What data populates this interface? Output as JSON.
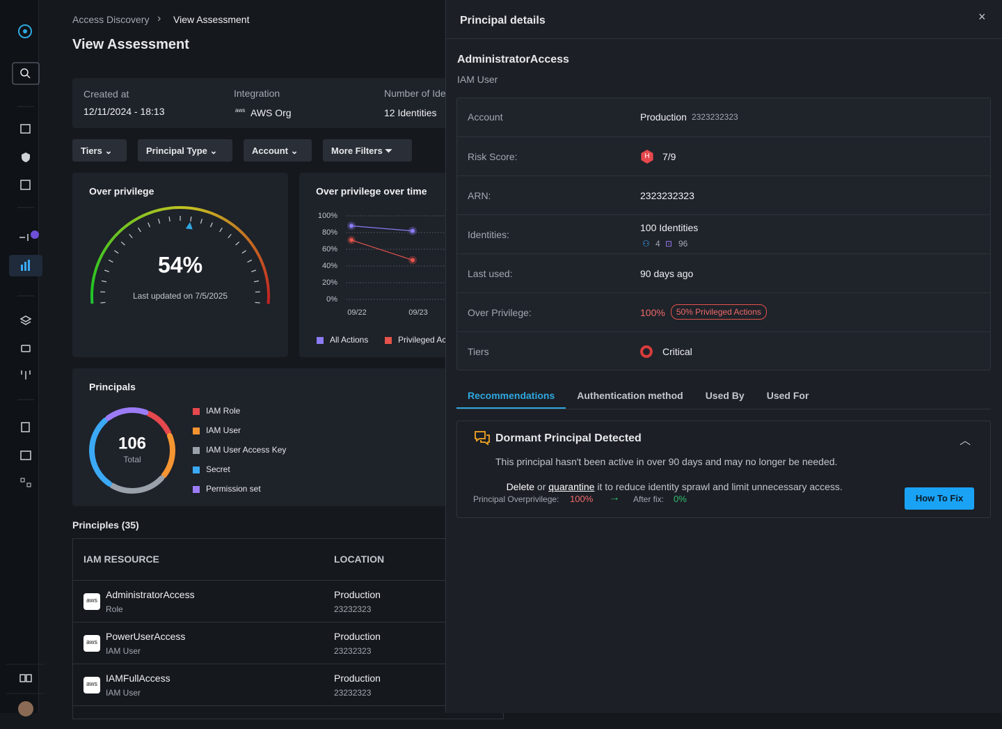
{
  "logo_text": "aws",
  "nav": {
    "breadcrumb": [
      "Access Discovery",
      "View Assessment"
    ],
    "title": "View Assessment"
  },
  "summary": [
    {
      "label": "Created at",
      "value": "12/11/2024 - 18:13"
    },
    {
      "label": "Integration",
      "value": "AWS Org"
    },
    {
      "label": "Number of Identities",
      "value": "12 Identities"
    }
  ],
  "filters": [
    "Tiers",
    "Principal Type",
    "Account",
    "More Filters"
  ],
  "gauge": {
    "type": "gauge",
    "title": "Over privilege",
    "value": 54,
    "value_label": "54%",
    "caption": "Last updated on 7/5/2025",
    "ylim": [
      0,
      100
    ]
  },
  "trend": {
    "type": "line",
    "title": "Over privilege over time",
    "categories": [
      "09/22",
      "09/23"
    ],
    "series": [
      {
        "name": "All Actions",
        "color": "#8b7cf6",
        "values": [
          88,
          82
        ]
      },
      {
        "name": "Privileged Actions",
        "color": "#e5534b",
        "values": [
          71,
          47
        ]
      }
    ],
    "ylim": [
      0,
      100
    ],
    "yticks": [
      {
        "value": 0,
        "label": "0%"
      },
      {
        "value": 20,
        "label": "20%"
      },
      {
        "value": 40,
        "label": "40%"
      },
      {
        "value": 60,
        "label": "60%"
      },
      {
        "value": 80,
        "label": "80%"
      },
      {
        "value": 100,
        "label": "100%"
      }
    ],
    "grid": true
  },
  "principals_chart": {
    "type": "donut",
    "title": "Principals",
    "total": 106,
    "total_label": "Total",
    "categories": [
      "IAM Role",
      "IAM User",
      "IAM User Access Key",
      "Secret",
      "Permission set"
    ],
    "colors": [
      "#e5484d",
      "#f59532",
      "#9aa1ab",
      "#3ba9f5",
      "#9b7cf6"
    ],
    "values": [
      13,
      19,
      24,
      32,
      18
    ]
  },
  "table": {
    "title": "Principles (35)",
    "columns": [
      "IAM RESOURCE",
      "LOCATION"
    ],
    "rows": [
      {
        "name": "AdministratorAccess",
        "type": "Role",
        "location": "Production",
        "account": "23232323"
      },
      {
        "name": "PowerUserAccess",
        "type": "IAM User",
        "location": "Production",
        "account": "23232323"
      },
      {
        "name": "IAMFullAccess",
        "type": "IAM User",
        "location": "Production",
        "account": "23232323"
      }
    ]
  },
  "panel": {
    "title": "Principal details",
    "close": "×",
    "name": "AdministratorAccess",
    "kind": "IAM User",
    "details": [
      {
        "label": "Account",
        "value": "Production",
        "extra": "2323232323"
      },
      {
        "label": "Risk Score:",
        "badge": "H",
        "value": "7/9"
      },
      {
        "label": "ARN:",
        "value": "2323232323"
      },
      {
        "label": "Identities:",
        "value": "100 Identities",
        "users": "4",
        "bots": "96"
      },
      {
        "label": "Last used:",
        "value": "90 days ago"
      },
      {
        "label": "Over Privilege:",
        "value": "100%",
        "extra": "50% Privileged Actions"
      },
      {
        "label": "Tiers",
        "value": "Critical"
      }
    ],
    "tabs": [
      "Recommendations",
      "Authentication method",
      "Used By",
      "Used For"
    ],
    "active_tab": 0,
    "recommendation": {
      "title": "Dormant Principal Detected",
      "text": "This principal hasn't been active in over 90 days and may no longer be needed.",
      "parts": [
        "Delete",
        " or ",
        "quarantine",
        " it to reduce identity sprawl and limit unnecessary access."
      ],
      "metric_label": "Principal Overprivilege:",
      "metric": "100%",
      "after_label": "After fix:",
      "after": "0%",
      "button": "How To Fix"
    }
  }
}
